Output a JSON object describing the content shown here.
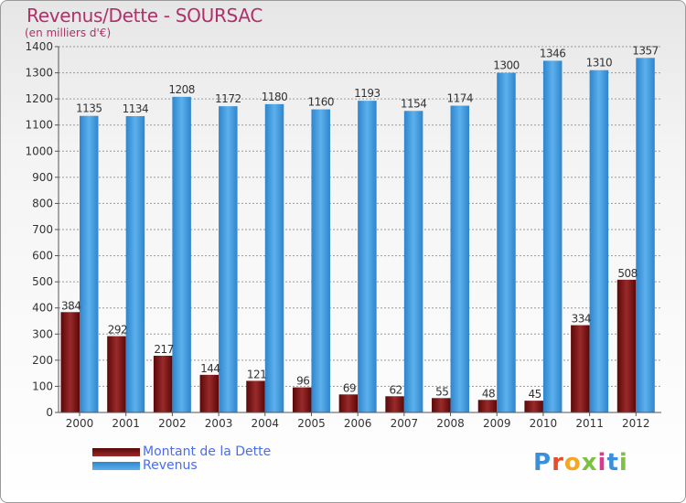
{
  "title": "Revenus/Dette - SOURSAC",
  "subtitle": "(en milliers d'€)",
  "logo": {
    "text": "Proxiti",
    "colors": [
      "#3a8fd8",
      "#e84c2a",
      "#f5a623",
      "#7cc242",
      "#d83a8f",
      "#3a8fd8",
      "#7cc242"
    ]
  },
  "colors": {
    "debt": "#7a1414",
    "revenue": "#3d95dc",
    "title": "#b0306a",
    "legend_text": "#4a6cf0"
  },
  "chart_data": {
    "type": "bar",
    "title": "Revenus/Dette - SOURSAC",
    "subtitle": "(en milliers d'€)",
    "categories": [
      "2000",
      "2001",
      "2002",
      "2003",
      "2004",
      "2005",
      "2006",
      "2007",
      "2008",
      "2009",
      "2010",
      "2011",
      "2012"
    ],
    "series": [
      {
        "name": "Montant de la Dette",
        "color": "#7a1414",
        "values": [
          384,
          292,
          217,
          144,
          121,
          96,
          69,
          62,
          55,
          48,
          45,
          334,
          508
        ]
      },
      {
        "name": "Revenus",
        "color": "#3d95dc",
        "values": [
          1135,
          1134,
          1208,
          1172,
          1180,
          1160,
          1193,
          1154,
          1174,
          1300,
          1346,
          1310,
          1357
        ]
      }
    ],
    "ylim": [
      0,
      1400
    ],
    "yticks": [
      0,
      100,
      200,
      300,
      400,
      500,
      600,
      700,
      800,
      900,
      1000,
      1100,
      1200,
      1300,
      1400
    ],
    "grid": true,
    "legend_position": "bottom-left"
  }
}
